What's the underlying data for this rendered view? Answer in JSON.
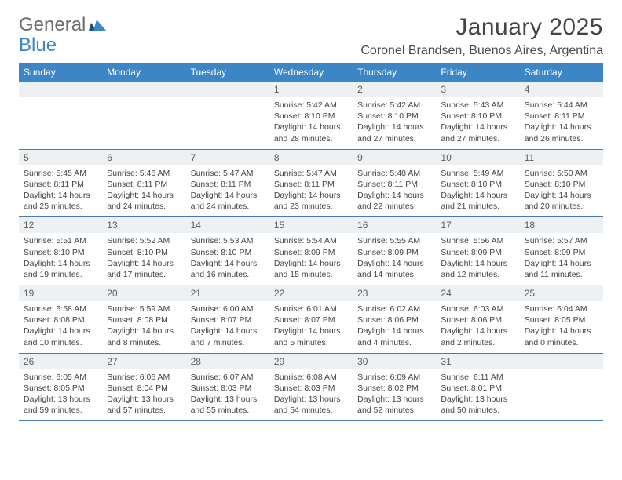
{
  "logo": {
    "word1": "General",
    "word2": "Blue"
  },
  "title": "January 2025",
  "location": "Coronel Brandsen, Buenos Aires, Argentina",
  "colors": {
    "header_bg": "#3d86c6",
    "header_text": "#ffffff",
    "daynum_bg": "#eef1f4",
    "rule": "#3d86c6",
    "body_text": "#444444",
    "logo_gray": "#6d6d6d",
    "logo_blue": "#3d86c6"
  },
  "weekdays": [
    "Sunday",
    "Monday",
    "Tuesday",
    "Wednesday",
    "Thursday",
    "Friday",
    "Saturday"
  ],
  "weeks": [
    {
      "nums": [
        "",
        "",
        "",
        "1",
        "2",
        "3",
        "4"
      ],
      "cells": [
        "",
        "",
        "",
        "Sunrise: 5:42 AM\nSunset: 8:10 PM\nDaylight: 14 hours and 28 minutes.",
        "Sunrise: 5:42 AM\nSunset: 8:10 PM\nDaylight: 14 hours and 27 minutes.",
        "Sunrise: 5:43 AM\nSunset: 8:10 PM\nDaylight: 14 hours and 27 minutes.",
        "Sunrise: 5:44 AM\nSunset: 8:11 PM\nDaylight: 14 hours and 26 minutes."
      ]
    },
    {
      "nums": [
        "5",
        "6",
        "7",
        "8",
        "9",
        "10",
        "11"
      ],
      "cells": [
        "Sunrise: 5:45 AM\nSunset: 8:11 PM\nDaylight: 14 hours and 25 minutes.",
        "Sunrise: 5:46 AM\nSunset: 8:11 PM\nDaylight: 14 hours and 24 minutes.",
        "Sunrise: 5:47 AM\nSunset: 8:11 PM\nDaylight: 14 hours and 24 minutes.",
        "Sunrise: 5:47 AM\nSunset: 8:11 PM\nDaylight: 14 hours and 23 minutes.",
        "Sunrise: 5:48 AM\nSunset: 8:11 PM\nDaylight: 14 hours and 22 minutes.",
        "Sunrise: 5:49 AM\nSunset: 8:10 PM\nDaylight: 14 hours and 21 minutes.",
        "Sunrise: 5:50 AM\nSunset: 8:10 PM\nDaylight: 14 hours and 20 minutes."
      ]
    },
    {
      "nums": [
        "12",
        "13",
        "14",
        "15",
        "16",
        "17",
        "18"
      ],
      "cells": [
        "Sunrise: 5:51 AM\nSunset: 8:10 PM\nDaylight: 14 hours and 19 minutes.",
        "Sunrise: 5:52 AM\nSunset: 8:10 PM\nDaylight: 14 hours and 17 minutes.",
        "Sunrise: 5:53 AM\nSunset: 8:10 PM\nDaylight: 14 hours and 16 minutes.",
        "Sunrise: 5:54 AM\nSunset: 8:09 PM\nDaylight: 14 hours and 15 minutes.",
        "Sunrise: 5:55 AM\nSunset: 8:09 PM\nDaylight: 14 hours and 14 minutes.",
        "Sunrise: 5:56 AM\nSunset: 8:09 PM\nDaylight: 14 hours and 12 minutes.",
        "Sunrise: 5:57 AM\nSunset: 8:09 PM\nDaylight: 14 hours and 11 minutes."
      ]
    },
    {
      "nums": [
        "19",
        "20",
        "21",
        "22",
        "23",
        "24",
        "25"
      ],
      "cells": [
        "Sunrise: 5:58 AM\nSunset: 8:08 PM\nDaylight: 14 hours and 10 minutes.",
        "Sunrise: 5:59 AM\nSunset: 8:08 PM\nDaylight: 14 hours and 8 minutes.",
        "Sunrise: 6:00 AM\nSunset: 8:07 PM\nDaylight: 14 hours and 7 minutes.",
        "Sunrise: 6:01 AM\nSunset: 8:07 PM\nDaylight: 14 hours and 5 minutes.",
        "Sunrise: 6:02 AM\nSunset: 8:06 PM\nDaylight: 14 hours and 4 minutes.",
        "Sunrise: 6:03 AM\nSunset: 8:06 PM\nDaylight: 14 hours and 2 minutes.",
        "Sunrise: 6:04 AM\nSunset: 8:05 PM\nDaylight: 14 hours and 0 minutes."
      ]
    },
    {
      "nums": [
        "26",
        "27",
        "28",
        "29",
        "30",
        "31",
        ""
      ],
      "cells": [
        "Sunrise: 6:05 AM\nSunset: 8:05 PM\nDaylight: 13 hours and 59 minutes.",
        "Sunrise: 6:06 AM\nSunset: 8:04 PM\nDaylight: 13 hours and 57 minutes.",
        "Sunrise: 6:07 AM\nSunset: 8:03 PM\nDaylight: 13 hours and 55 minutes.",
        "Sunrise: 6:08 AM\nSunset: 8:03 PM\nDaylight: 13 hours and 54 minutes.",
        "Sunrise: 6:09 AM\nSunset: 8:02 PM\nDaylight: 13 hours and 52 minutes.",
        "Sunrise: 6:11 AM\nSunset: 8:01 PM\nDaylight: 13 hours and 50 minutes.",
        ""
      ]
    }
  ]
}
